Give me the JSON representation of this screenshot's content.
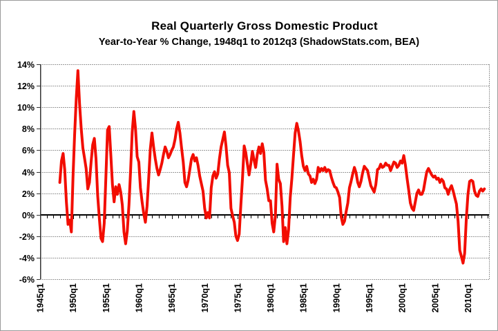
{
  "figure": {
    "title": "Real Quarterly Gross Domestic Product",
    "subtitle": "Year-to-Year % Change, 1948q1 to 2012q3 (ShadowStats.com, BEA)"
  },
  "chart_data": {
    "type": "line",
    "title": "Real Quarterly Gross Domestic Product",
    "subtitle": "Year-to-Year % Change, 1948q1 to 2012q3 (ShadowStats.com, BEA)",
    "series_name": "Real GDP year-to-year % change",
    "source_note": "ShadowStats.com, BEA",
    "x_start": 1948.0,
    "x_step": 0.25,
    "x_first_point_label": "1948q1",
    "x_last_point_label": "2012q3",
    "values": [
      3.0,
      5.0,
      5.7,
      4.2,
      1.2,
      -0.9,
      -0.5,
      -1.6,
      3.5,
      7.4,
      10.8,
      13.4,
      10.3,
      8.0,
      6.2,
      5.3,
      4.3,
      2.4,
      3.0,
      4.9,
      6.5,
      7.1,
      5.2,
      1.8,
      -0.3,
      -2.2,
      -2.5,
      -0.8,
      3.5,
      7.9,
      8.2,
      5.5,
      2.8,
      1.2,
      2.6,
      1.9,
      2.8,
      2.1,
      0.9,
      -1.6,
      -2.7,
      -1.5,
      0.9,
      4.0,
      7.7,
      9.6,
      8.0,
      5.4,
      4.9,
      2.5,
      1.2,
      0.1,
      -0.7,
      0.8,
      3.4,
      6.1,
      7.6,
      6.3,
      5.2,
      4.3,
      3.7,
      4.2,
      4.8,
      5.6,
      6.3,
      5.9,
      5.3,
      5.6,
      6.0,
      6.3,
      7.0,
      8.0,
      8.6,
      7.6,
      6.2,
      4.9,
      3.0,
      2.6,
      3.2,
      4.2,
      5.2,
      5.6,
      5.0,
      5.3,
      4.6,
      3.6,
      2.9,
      2.2,
      0.6,
      -0.3,
      0.2,
      -0.3,
      2.5,
      3.6,
      4.0,
      3.4,
      3.8,
      5.2,
      6.3,
      7.0,
      7.7,
      6.4,
      4.6,
      3.9,
      0.6,
      -0.1,
      -0.7,
      -2.0,
      -2.4,
      -1.8,
      0.9,
      3.4,
      6.4,
      5.8,
      4.7,
      3.7,
      4.7,
      5.9,
      5.1,
      4.4,
      5.6,
      6.3,
      5.7,
      6.6,
      5.8,
      3.2,
      2.4,
      1.3,
      1.3,
      -0.8,
      -1.6,
      -0.1,
      4.7,
      3.3,
      2.9,
      0.8,
      -2.5,
      -1.2,
      -2.7,
      -1.4,
      1.6,
      3.4,
      5.5,
      7.6,
      8.5,
      7.8,
      6.8,
      5.5,
      4.5,
      4.1,
      4.5,
      3.8,
      3.6,
      3.0,
      3.3,
      2.9,
      3.3,
      4.4,
      4.0,
      4.3,
      4.1,
      4.4,
      4.0,
      4.2,
      4.1,
      3.5,
      3.0,
      2.6,
      2.5,
      2.1,
      1.6,
      -0.2,
      -0.9,
      -0.6,
      0.3,
      1.1,
      2.5,
      3.1,
      3.8,
      4.4,
      3.9,
      3.0,
      2.6,
      3.1,
      3.9,
      4.5,
      4.3,
      4.1,
      3.4,
      2.7,
      2.4,
      2.1,
      2.8,
      4.2,
      4.3,
      4.7,
      4.4,
      4.5,
      4.8,
      4.6,
      4.6,
      4.1,
      4.5,
      4.9,
      4.8,
      4.4,
      4.6,
      5.0,
      4.8,
      5.5,
      4.6,
      3.4,
      2.3,
      1.1,
      0.6,
      0.4,
      1.2,
      2.0,
      2.3,
      1.9,
      1.9,
      2.3,
      3.2,
      4.0,
      4.3,
      4.0,
      3.7,
      3.5,
      3.6,
      3.3,
      3.4,
      3.0,
      3.3,
      3.1,
      2.5,
      2.4,
      1.9,
      2.4,
      2.7,
      2.2,
      1.6,
      1.0,
      -0.6,
      -3.3,
      -3.9,
      -4.5,
      -3.6,
      -0.4,
      1.9,
      3.1,
      3.2,
      3.1,
      2.2,
      1.8,
      1.7,
      2.2,
      2.4,
      2.2,
      2.4
    ],
    "x_axis": {
      "min": 1945.0,
      "max": 2013.2,
      "tick_years": [
        1945,
        1950,
        1955,
        1960,
        1965,
        1970,
        1975,
        1980,
        1985,
        1990,
        1995,
        2000,
        2005,
        2010
      ],
      "tick_labels": [
        "1945q1",
        "1950q1",
        "1955q1",
        "1960q1",
        "1965q1",
        "1970q1",
        "1975q1",
        "1980q1",
        "1985q1",
        "1990q1",
        "1995q1",
        "2000q1",
        "2005q1",
        "2010q1"
      ],
      "minor_tick_every_years": 1
    },
    "y_axis": {
      "min": -6,
      "max": 14,
      "tick_step": 2,
      "tick_labels": [
        "14%",
        "12%",
        "10%",
        "8%",
        "6%",
        "4%",
        "2%",
        "0%",
        "-2%",
        "-4%",
        "-6%"
      ],
      "unit": "%"
    },
    "grid": "on",
    "legend_position": "none",
    "line_color": "#f20d00",
    "grid_color": "#999999",
    "zero_line_color": "#000000",
    "axis_color": "#333333",
    "background_color": "#ffffff"
  }
}
